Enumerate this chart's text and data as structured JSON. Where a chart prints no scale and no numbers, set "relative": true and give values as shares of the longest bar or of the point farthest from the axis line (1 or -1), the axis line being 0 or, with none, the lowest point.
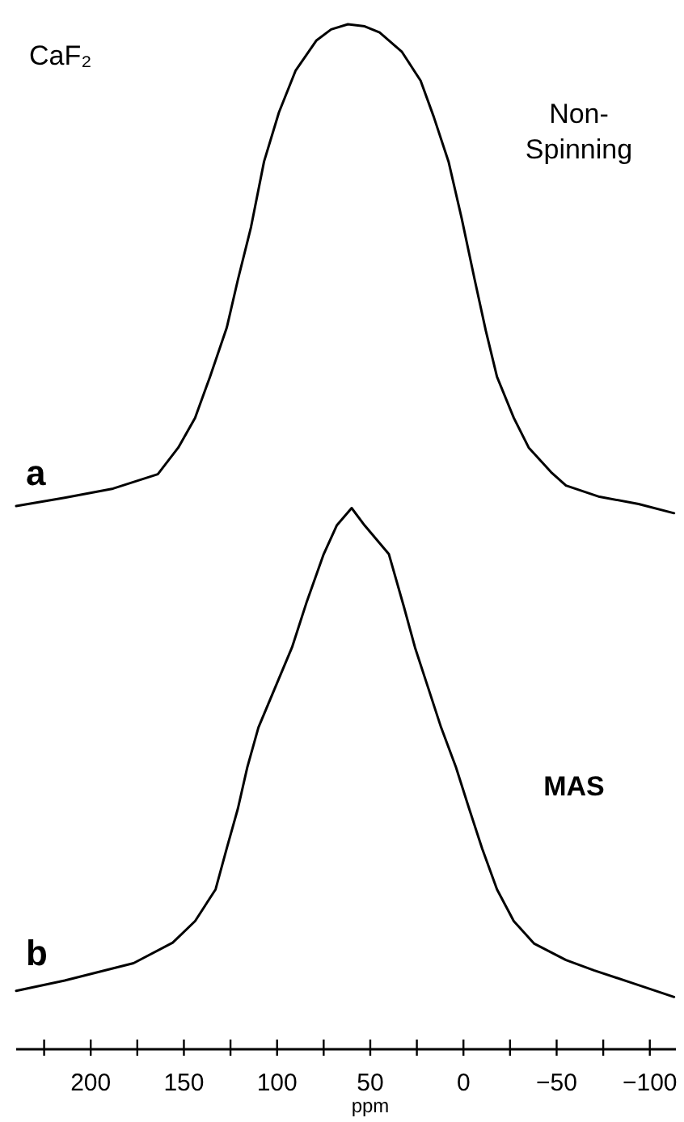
{
  "chart_data": {
    "type": "line",
    "relative": true,
    "xlim": [
      240,
      -114
    ],
    "xlabel": "ppm",
    "annotations": [
      "CaF₂",
      "Non-\nSpinning",
      "a",
      "MAS",
      "b"
    ],
    "xticks": [
      {
        "value": 225,
        "label": null
      },
      200,
      {
        "value": 175,
        "label": null
      },
      150,
      {
        "value": 125,
        "label": null
      },
      100,
      {
        "value": 75,
        "label": null
      },
      50,
      {
        "value": 25,
        "label": null
      },
      0,
      {
        "value": -25,
        "label": null
      },
      {
        "value": -50,
        "label": "−50"
      },
      {
        "value": -75,
        "label": null
      },
      {
        "value": -100,
        "label": "−100"
      }
    ],
    "series": [
      {
        "color": "#000000",
        "x": [
          240,
          214,
          188,
          164,
          153,
          144,
          136,
          127,
          121,
          114,
          107,
          99,
          90,
          79,
          71,
          62,
          53,
          45,
          33,
          23,
          16,
          8,
          1,
          -6,
          -12,
          -18,
          -27,
          -35,
          -47,
          -55,
          -73,
          -94,
          -113
        ],
        "values": [
          0.53,
          0.538,
          0.547,
          0.561,
          0.587,
          0.616,
          0.656,
          0.704,
          0.751,
          0.802,
          0.866,
          0.914,
          0.955,
          0.984,
          0.995,
          1,
          0.998,
          0.992,
          0.973,
          0.945,
          0.91,
          0.866,
          0.811,
          0.751,
          0.701,
          0.656,
          0.616,
          0.587,
          0.563,
          0.55,
          0.539,
          0.532,
          0.523
        ]
      },
      {
        "color": "#000000",
        "x": [
          240,
          214,
          177,
          156,
          144,
          133,
          127,
          121,
          116,
          110,
          101,
          92,
          84,
          75,
          68,
          60,
          53,
          40,
          32,
          26,
          19,
          12,
          4,
          -3,
          -10,
          -18,
          -27,
          -38,
          -55,
          -70,
          -90,
          -113
        ],
        "values": [
          0.057,
          0.067,
          0.084,
          0.104,
          0.125,
          0.156,
          0.196,
          0.235,
          0.275,
          0.314,
          0.353,
          0.392,
          0.437,
          0.483,
          0.511,
          0.528,
          0.511,
          0.483,
          0.432,
          0.392,
          0.353,
          0.314,
          0.275,
          0.235,
          0.196,
          0.156,
          0.125,
          0.103,
          0.087,
          0.077,
          0.065,
          0.051
        ]
      }
    ]
  }
}
